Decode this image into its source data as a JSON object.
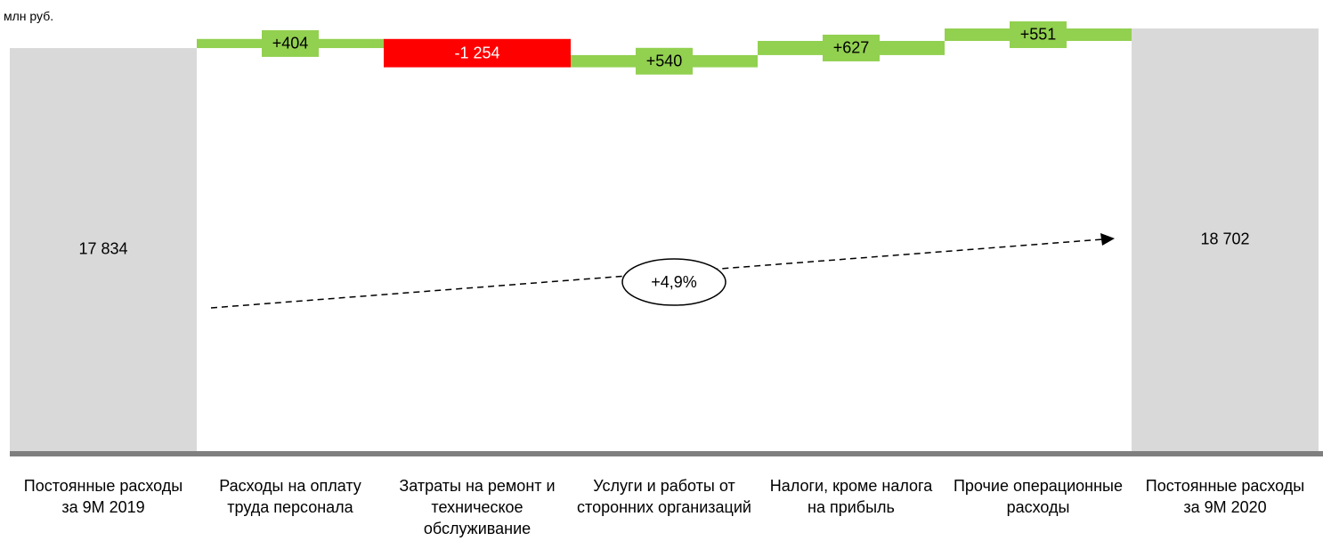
{
  "chart_data": {
    "type": "waterfall",
    "unit_label": "млн руб.",
    "categories": [
      "Постоянные расходы за 9M 2019",
      "Расходы на оплату труда персонала",
      "Затраты на ремонт и техническое обслуживание",
      "Услуги и работы от сторонних организаций",
      "Налоги, кроме налога на прибыль",
      "Прочие операционные расходы",
      "Постоянные расходы за 9M 2020"
    ],
    "values": [
      17834,
      404,
      -1254,
      540,
      627,
      551,
      18702
    ],
    "value_labels": [
      "17 834",
      "+404",
      "-1 254",
      "+540",
      "+627",
      "+551",
      "18 702"
    ],
    "measures": [
      "total",
      "relative",
      "relative",
      "relative",
      "relative",
      "relative",
      "total"
    ],
    "colors": [
      "#d9d9d9",
      "#92d050",
      "#ff0000",
      "#92d050",
      "#92d050",
      "#92d050",
      "#d9d9d9"
    ],
    "annotation": "+4,9%"
  }
}
